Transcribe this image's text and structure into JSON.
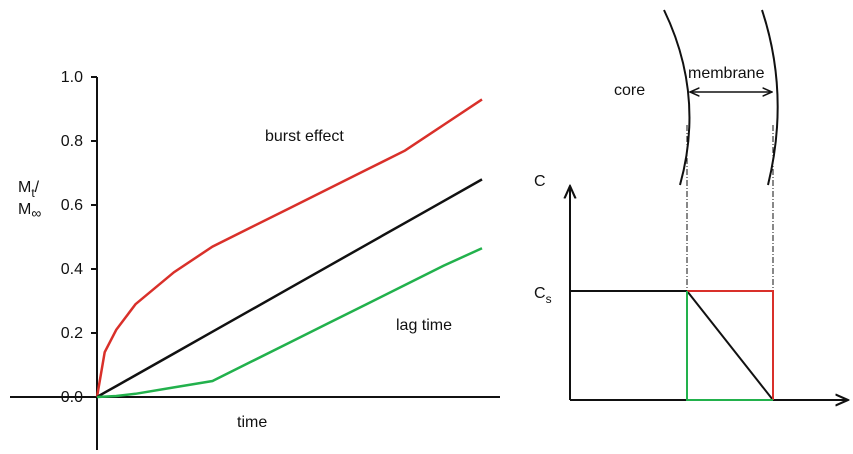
{
  "chart_data": {
    "type": "line",
    "x": [
      0,
      0.02,
      0.05,
      0.1,
      0.2,
      0.3,
      0.4,
      0.5,
      0.6,
      0.7,
      0.8,
      0.9,
      1.0
    ],
    "series": [
      {
        "color": "#d9302a",
        "values": [
          0,
          0.14,
          0.21,
          0.29,
          0.39,
          0.47,
          0.53,
          0.59,
          0.65,
          0.71,
          0.77,
          0.85,
          0.93
        ]
      },
      {
        "color": "#111111",
        "values": [
          0,
          0.014,
          0.034,
          0.068,
          0.136,
          0.204,
          0.272,
          0.34,
          0.408,
          0.476,
          0.544,
          0.612,
          0.68
        ]
      },
      {
        "color": "#22b14c",
        "values": [
          0,
          0.001,
          0.003,
          0.01,
          0.03,
          0.05,
          0.11,
          0.17,
          0.23,
          0.29,
          0.35,
          0.41,
          0.465
        ]
      }
    ],
    "xlim": [
      0,
      1
    ],
    "ylim": [
      0,
      1
    ],
    "yticks": [
      {
        "value": 0,
        "label": "0.0"
      },
      0.2,
      0.4,
      0.6,
      0.8,
      {
        "value": 1,
        "label": "1.0"
      }
    ],
    "xlabel": "time",
    "ylabel": {
      "m1": "M",
      "s1": "t",
      "slash": "/",
      "m2": "M",
      "s2": "∞"
    },
    "annotations": [
      "burst effect",
      "lag time"
    ]
  },
  "diagram": {
    "core": "core",
    "membrane": "membrane",
    "c_axis": "C",
    "cs": {
      "main": "C",
      "sub": "s"
    }
  }
}
